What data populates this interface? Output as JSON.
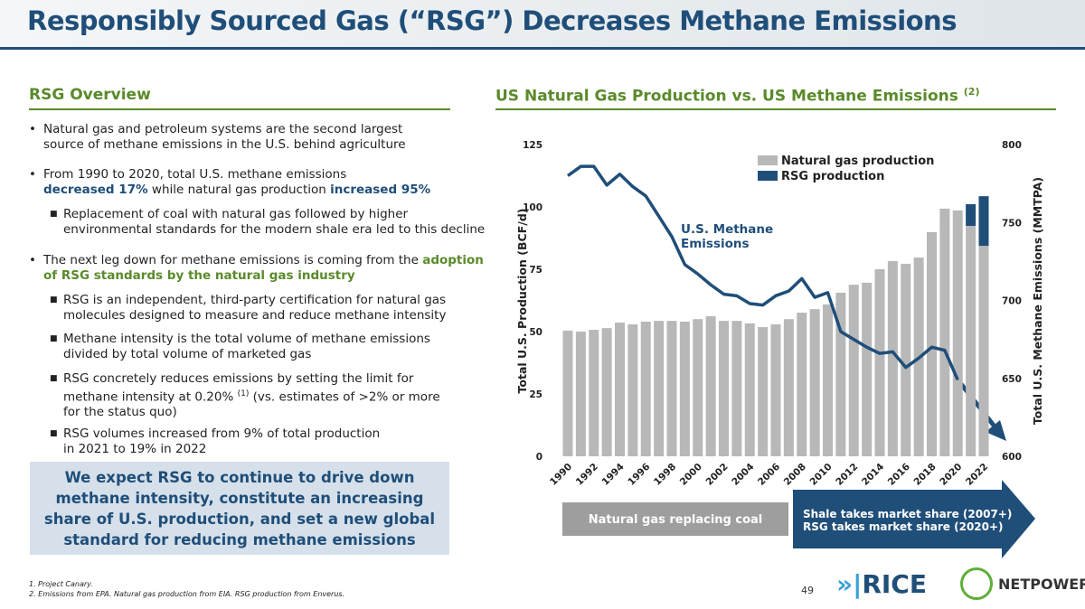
{
  "header": {
    "title": "Responsibly Sourced Gas (“RSG”) Decreases Methane Emissions"
  },
  "overview": {
    "heading": "RSG Overview",
    "bullets": [
      [
        "Natural gas and petroleum systems are the second largest",
        "source of methane emissions in the U.S. behind agriculture"
      ],
      [
        "From 1990 to 2020, total U.S. methane emissions",
        "decreased 17%",
        " while natural gas production ",
        "increased 95%"
      ],
      [
        "Replacement of coal with natural gas followed by higher",
        "environmental standards for the modern shale era led to this decline"
      ],
      [
        "The next leg down for methane emissions is coming from the ",
        "adoption",
        "of RSG standards by the natural gas industry"
      ],
      [
        "RSG is an independent, third-party certification for natural gas",
        "molecules designed to measure and reduce methane intensity"
      ],
      [
        "Methane intensity is the total volume of methane emissions",
        "divided by total volume of marketed gas"
      ],
      [
        "RSG concretely reduces emissions by setting the limit for",
        "methane intensity at 0.20% ",
        "(1)",
        " (vs. estimates of >2% or more",
        "for the status quo)"
      ],
      [
        "RSG volumes increased from 9% of total production",
        "in 2021 to 19% in 2022"
      ]
    ],
    "callout": "We expect RSG to continue to drive down methane intensity, constitute an increasing share of U.S. production, and set a new global standard for reducing methane emissions"
  },
  "chart_data": {
    "type": "bar",
    "title": "US Natural Gas Production vs. US Methane Emissions",
    "title_note": "(2)",
    "stacked": true,
    "categories": [
      "1990",
      null,
      "1992",
      null,
      "1994",
      null,
      "1996",
      null,
      "1998",
      null,
      "2000",
      null,
      "2002",
      null,
      "2004",
      null,
      "2006",
      null,
      "2008",
      null,
      "2010",
      null,
      "2012",
      null,
      "2014",
      null,
      "2016",
      null,
      "2018",
      null,
      "2020",
      null,
      "2022"
    ],
    "series": [
      {
        "name": "Natural gas production",
        "color": "#b8b8b8",
        "values": [
          50.4,
          50,
          50.7,
          51.4,
          53.6,
          52.9,
          54,
          54.3,
          54.3,
          54,
          55,
          56.2,
          54.3,
          54.3,
          53.3,
          51.8,
          52.9,
          55,
          57.6,
          59,
          60.9,
          65.6,
          68.8,
          69.6,
          75,
          78.3,
          77.2,
          79.7,
          89.9,
          99.3,
          98.6,
          92.4,
          84.4
        ]
      },
      {
        "name": "RSG production",
        "color": "#1f4e79",
        "values": [
          null,
          null,
          null,
          null,
          null,
          null,
          null,
          null,
          null,
          null,
          null,
          null,
          null,
          null,
          null,
          null,
          null,
          null,
          null,
          null,
          null,
          null,
          null,
          null,
          null,
          null,
          null,
          null,
          null,
          null,
          null,
          8.7,
          19.9
        ]
      },
      {
        "name": "U.S. Methane Emissions",
        "color": "#1f4e79",
        "axis": "y2",
        "values": [
          780,
          786,
          786,
          774,
          781,
          773,
          767,
          754,
          741,
          723,
          717,
          710,
          704,
          703,
          698,
          697,
          703,
          706,
          714,
          702,
          705,
          680,
          675,
          670,
          666,
          667,
          657,
          663,
          670,
          668,
          649,
          null,
          null
        ]
      }
    ],
    "ylabel": "Total U.S. Production (BCF/d)",
    "y2label": "Total U.S. Methane Emissions (MMTPA)",
    "ylim": [
      0,
      125
    ],
    "yticks": [
      0,
      25,
      50,
      75,
      100,
      125
    ],
    "y2lim": [
      600,
      800
    ],
    "y2ticks": [
      600,
      650,
      700,
      750,
      800
    ],
    "phases": [
      "Natural gas replacing coal",
      "Shale takes market share (2007+)",
      "RSG takes market share (2020+)"
    ]
  },
  "footer": {
    "notes": [
      "1.  Project Canary.",
      "2.  Emissions from EPA. Natural gas production from EIA. RSG production from Enverus."
    ],
    "page": "49",
    "logo1": "RICE",
    "logo2": "NETPOWER"
  }
}
